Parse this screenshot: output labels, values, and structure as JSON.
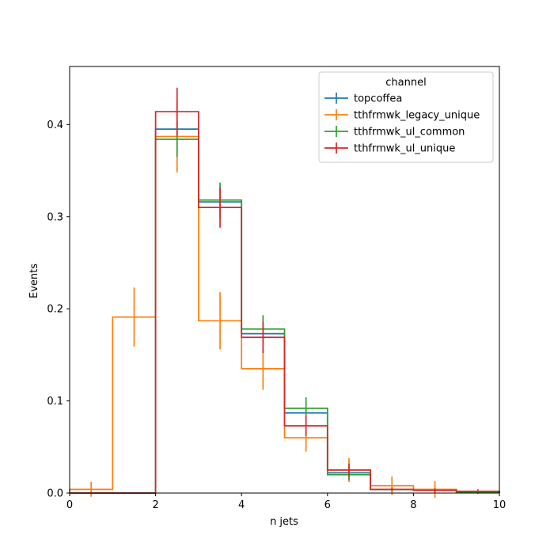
{
  "chart_data": {
    "type": "histogram",
    "title": "",
    "xlabel": "n jets",
    "ylabel": "Events",
    "xlim": [
      0,
      10
    ],
    "ylim": [
      0,
      0.463
    ],
    "xticks": [
      "0",
      "2",
      "4",
      "6",
      "8",
      "10"
    ],
    "yticks": [
      "0.0",
      "0.1",
      "0.2",
      "0.3",
      "0.4"
    ],
    "grid": false,
    "legend": {
      "title": "channel",
      "placement": "top-right"
    },
    "bin_edges": [
      0,
      1,
      2,
      3,
      4,
      5,
      6,
      7,
      8,
      9,
      10
    ],
    "series": [
      {
        "name": "topcoffea",
        "color": "#1f77b4",
        "values": [
          0.0,
          0.0,
          0.395,
          0.316,
          0.173,
          0.087,
          0.022,
          0.004,
          0.003,
          0.001
        ],
        "errors": [
          0.0,
          0.0,
          0.0,
          0.0,
          0.0,
          0.0,
          0.0,
          0.0,
          0.0,
          0.0
        ]
      },
      {
        "name": "tthfrmwk_legacy_unique",
        "color": "#ff7f0e",
        "values": [
          0.004,
          0.191,
          0.387,
          0.187,
          0.135,
          0.06,
          0.025,
          0.008,
          0.004,
          0.001
        ],
        "errors": [
          0.008,
          0.032,
          0.039,
          0.031,
          0.023,
          0.015,
          0.013,
          0.01,
          0.009,
          0.002
        ]
      },
      {
        "name": "tthfrmwk_ul_common",
        "color": "#2ca02c",
        "values": [
          0.0,
          0.0,
          0.384,
          0.318,
          0.178,
          0.092,
          0.02,
          0.004,
          0.003,
          0.001
        ],
        "errors": [
          0.0,
          0.0,
          0.019,
          0.019,
          0.015,
          0.012,
          0.006,
          0.002,
          0.002,
          0.001
        ]
      },
      {
        "name": "tthfrmwk_ul_unique",
        "color": "#d62728",
        "values": [
          0.0,
          0.0,
          0.414,
          0.31,
          0.169,
          0.073,
          0.025,
          0.004,
          0.003,
          0.002
        ],
        "errors": [
          0.0,
          0.0,
          0.026,
          0.022,
          0.017,
          0.011,
          0.007,
          0.002,
          0.002,
          0.002
        ]
      }
    ]
  }
}
